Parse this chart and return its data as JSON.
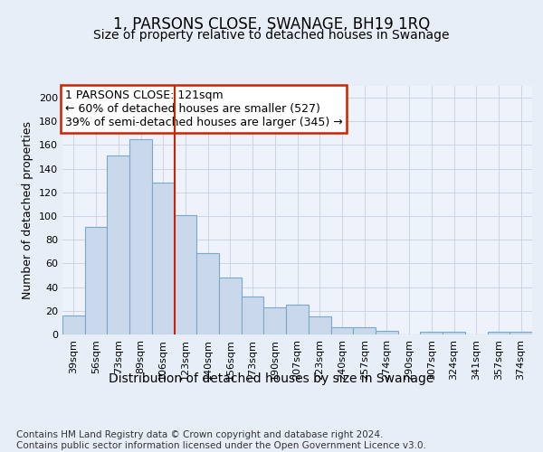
{
  "title": "1, PARSONS CLOSE, SWANAGE, BH19 1RQ",
  "subtitle": "Size of property relative to detached houses in Swanage",
  "xlabel": "Distribution of detached houses by size in Swanage",
  "ylabel": "Number of detached properties",
  "categories": [
    "39sqm",
    "56sqm",
    "73sqm",
    "89sqm",
    "106sqm",
    "123sqm",
    "140sqm",
    "156sqm",
    "173sqm",
    "190sqm",
    "207sqm",
    "223sqm",
    "240sqm",
    "257sqm",
    "274sqm",
    "290sqm",
    "307sqm",
    "324sqm",
    "341sqm",
    "357sqm",
    "374sqm"
  ],
  "values": [
    16,
    91,
    151,
    165,
    128,
    101,
    69,
    48,
    32,
    23,
    25,
    15,
    6,
    6,
    3,
    0,
    2,
    2,
    0,
    2,
    2
  ],
  "bar_color": "#c9d9eb",
  "bar_edge_color": "#7aa8cc",
  "annotation_text": "1 PARSONS CLOSE: 121sqm\n← 60% of detached houses are smaller (527)\n39% of semi-detached houses are larger (345) →",
  "annotation_box_color": "#ffffff",
  "annotation_box_edge_color": "#cc2200",
  "vline_x": 5.0,
  "vline_color": "#cc2200",
  "ylim": [
    0,
    210
  ],
  "yticks": [
    0,
    20,
    40,
    60,
    80,
    100,
    120,
    140,
    160,
    180,
    200
  ],
  "footer": "Contains HM Land Registry data © Crown copyright and database right 2024.\nContains public sector information licensed under the Open Government Licence v3.0.",
  "bg_color": "#e8eef8",
  "plot_bg_color": "#eef2fa",
  "grid_color": "#c8cfe0",
  "title_fontsize": 12,
  "subtitle_fontsize": 10,
  "xlabel_fontsize": 10,
  "ylabel_fontsize": 9,
  "tick_fontsize": 8,
  "footer_fontsize": 7.5,
  "annotation_fontsize": 9
}
